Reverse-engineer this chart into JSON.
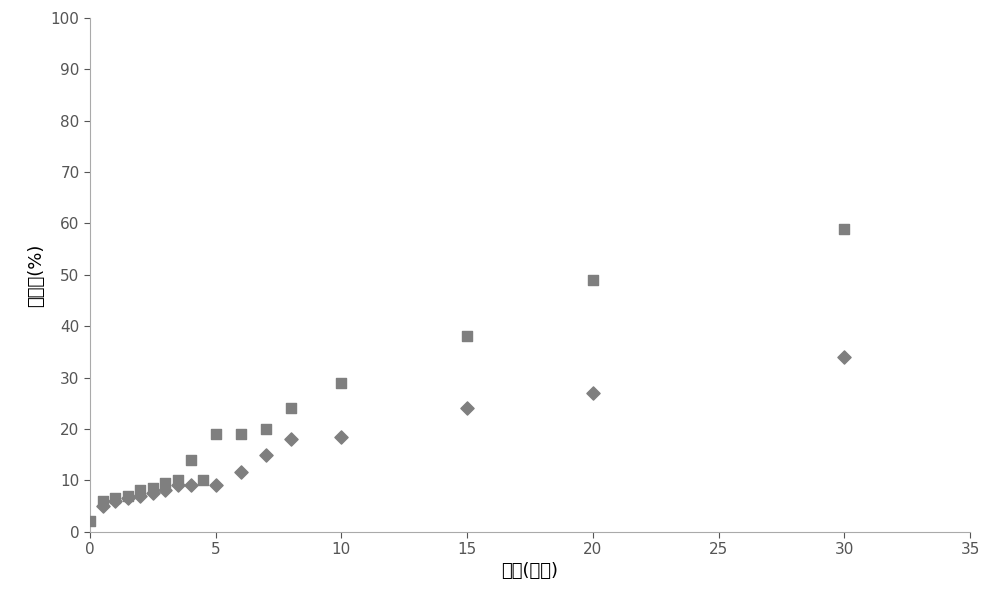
{
  "squares_x": [
    0,
    0.5,
    1,
    1.5,
    2,
    2.5,
    3,
    3.5,
    4,
    4.5,
    5,
    6,
    7,
    8,
    10,
    15,
    20,
    30
  ],
  "squares_y": [
    2,
    6,
    6.5,
    7,
    8,
    8.5,
    9.5,
    10,
    14,
    10,
    19,
    19,
    20,
    24,
    29,
    38,
    49,
    59
  ],
  "diamonds_x": [
    0.5,
    1,
    1.5,
    2,
    2.5,
    3,
    3.5,
    4,
    5,
    6,
    7,
    8,
    10,
    15,
    20,
    30
  ],
  "diamonds_y": [
    5,
    6,
    6.5,
    7,
    7.5,
    8,
    9,
    9,
    9,
    11.5,
    15,
    18,
    18.5,
    24,
    27,
    34
  ],
  "marker_color": "#7f7f7f",
  "xlabel": "时间(分钟)",
  "ylabel": "去除率(%)",
  "xlim": [
    0,
    35
  ],
  "ylim": [
    0,
    100
  ],
  "xticks": [
    0,
    5,
    10,
    15,
    20,
    25,
    30,
    35
  ],
  "yticks": [
    0,
    10,
    20,
    30,
    40,
    50,
    60,
    70,
    80,
    90,
    100
  ],
  "marker_size_sq": 55,
  "marker_size_di": 45,
  "background_color": "#ffffff",
  "xlabel_fontsize": 13,
  "ylabel_fontsize": 13,
  "tick_fontsize": 11,
  "border_color": "#aaaaaa",
  "spine_color": "#aaaaaa"
}
